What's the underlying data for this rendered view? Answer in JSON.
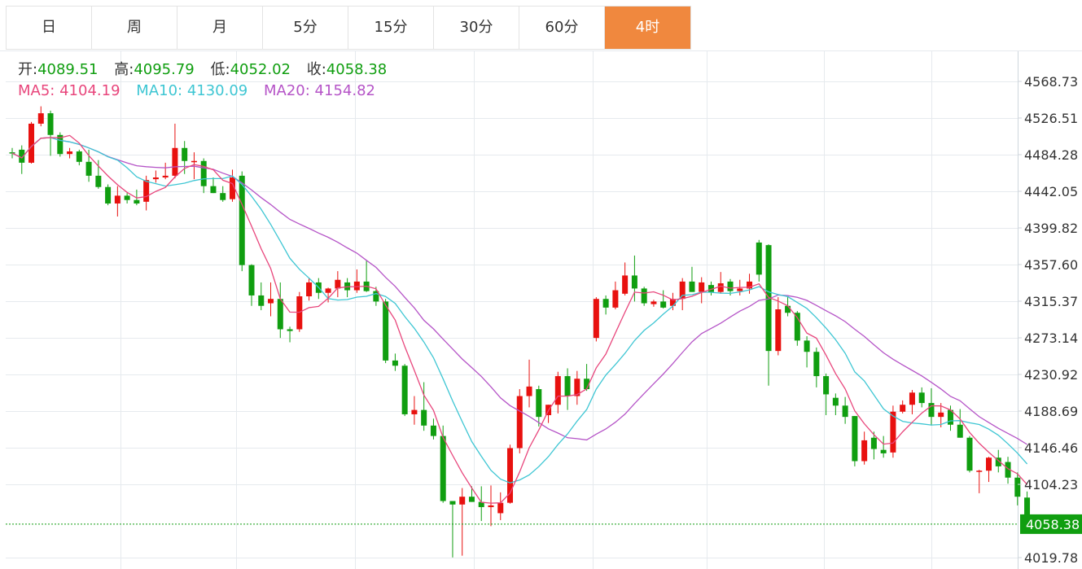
{
  "tabs": [
    {
      "label": "日",
      "active": false
    },
    {
      "label": "周",
      "active": false
    },
    {
      "label": "月",
      "active": false
    },
    {
      "label": "5分",
      "active": false
    },
    {
      "label": "15分",
      "active": false
    },
    {
      "label": "30分",
      "active": false
    },
    {
      "label": "60分",
      "active": false
    },
    {
      "label": "4时",
      "active": true
    }
  ],
  "ohlc_info": {
    "open_label": "开:",
    "open_value": "4089.51",
    "high_label": "高:",
    "high_value": "4095.79",
    "low_label": "低:",
    "low_value": "4052.02",
    "close_label": "收:",
    "close_value": "4058.38"
  },
  "ma_info": {
    "ma5_label": "MA5:",
    "ma5_value": "4104.19",
    "ma10_label": "MA10:",
    "ma10_value": "4130.09",
    "ma20_label": "MA20:",
    "ma20_value": "4154.82"
  },
  "colors": {
    "up": "#e8110f",
    "down": "#109e10",
    "ma5": "#e8467c",
    "ma10": "#3ec6d3",
    "ma20": "#b554c7",
    "grid": "#e6eaee",
    "accent": "#f0883e",
    "value_green": "#109e10"
  },
  "chart_data": {
    "type": "candlestick",
    "y_ticks": [
      "4568.73",
      "4526.51",
      "4484.28",
      "4442.05",
      "4399.82",
      "4357.60",
      "4315.37",
      "4273.14",
      "4230.92",
      "4188.69",
      "4146.46",
      "4104.23",
      "4019.78"
    ],
    "ylim": [
      4010,
      4572
    ],
    "last_price": "4058.38",
    "grid": true,
    "candles": [
      [
        4487,
        4492,
        4480,
        4486
      ],
      [
        4490,
        4495,
        4462,
        4475
      ],
      [
        4475,
        4522,
        4474,
        4520
      ],
      [
        4520,
        4540,
        4517,
        4532
      ],
      [
        4532,
        4535,
        4483,
        4507
      ],
      [
        4507,
        4510,
        4482,
        4485
      ],
      [
        4485,
        4492,
        4480,
        4488
      ],
      [
        4488,
        4490,
        4472,
        4476
      ],
      [
        4476,
        4490,
        4453,
        4460
      ],
      [
        4460,
        4478,
        4445,
        4447
      ],
      [
        4447,
        4450,
        4426,
        4428
      ],
      [
        4428,
        4448,
        4413,
        4437
      ],
      [
        4437,
        4440,
        4428,
        4432
      ],
      [
        4432,
        4444,
        4426,
        4428
      ],
      [
        4430,
        4460,
        4420,
        4455
      ],
      [
        4456,
        4466,
        4452,
        4458
      ],
      [
        4458,
        4475,
        4456,
        4460
      ],
      [
        4460,
        4520,
        4457,
        4492
      ],
      [
        4492,
        4500,
        4462,
        4477
      ],
      [
        4477,
        4487,
        4456,
        4477
      ],
      [
        4477,
        4480,
        4440,
        4448
      ],
      [
        4448,
        4458,
        4440,
        4440
      ],
      [
        4440,
        4448,
        4430,
        4432
      ],
      [
        4433,
        4467,
        4430,
        4458
      ],
      [
        4460,
        4465,
        4350,
        4357
      ],
      [
        4357,
        4358,
        4310,
        4322
      ],
      [
        4322,
        4337,
        4305,
        4310
      ],
      [
        4313,
        4337,
        4298,
        4318
      ],
      [
        4318,
        4337,
        4273,
        4283
      ],
      [
        4283,
        4286,
        4268,
        4281
      ],
      [
        4283,
        4326,
        4280,
        4321
      ],
      [
        4321,
        4342,
        4316,
        4337
      ],
      [
        4337,
        4342,
        4318,
        4325
      ],
      [
        4325,
        4331,
        4314,
        4330
      ],
      [
        4330,
        4350,
        4320,
        4340
      ],
      [
        4337,
        4342,
        4320,
        4328
      ],
      [
        4328,
        4352,
        4325,
        4338
      ],
      [
        4338,
        4362,
        4326,
        4327
      ],
      [
        4327,
        4332,
        4310,
        4315
      ],
      [
        4315,
        4318,
        4244,
        4247
      ],
      [
        4247,
        4255,
        4235,
        4241
      ],
      [
        4241,
        4243,
        4183,
        4185
      ],
      [
        4185,
        4206,
        4173,
        4190
      ],
      [
        4190,
        4222,
        4166,
        4172
      ],
      [
        4172,
        4180,
        4156,
        4160
      ],
      [
        4160,
        4172,
        4083,
        4085
      ],
      [
        4085,
        4085,
        4020,
        4081
      ],
      [
        4081,
        4100,
        4022,
        4090
      ],
      [
        4090,
        4102,
        4084,
        4084
      ],
      [
        4084,
        4102,
        4062,
        4078
      ],
      [
        4078,
        4103,
        4056,
        4080
      ],
      [
        4071,
        4095,
        4063,
        4083
      ],
      [
        4083,
        4150,
        4082,
        4146
      ],
      [
        4146,
        4214,
        4140,
        4206
      ],
      [
        4206,
        4248,
        4193,
        4217
      ],
      [
        4214,
        4218,
        4171,
        4182
      ],
      [
        4184,
        4196,
        4175,
        4196
      ],
      [
        4196,
        4234,
        4186,
        4229
      ],
      [
        4229,
        4238,
        4190,
        4206
      ],
      [
        4206,
        4235,
        4196,
        4226
      ],
      [
        4226,
        4243,
        4212,
        4214
      ],
      [
        4273,
        4320,
        4269,
        4318
      ],
      [
        4318,
        4322,
        4300,
        4308
      ],
      [
        4308,
        4338,
        4306,
        4328
      ],
      [
        4324,
        4360,
        4322,
        4345
      ],
      [
        4345,
        4368,
        4315,
        4330
      ],
      [
        4330,
        4332,
        4310,
        4313
      ],
      [
        4312,
        4317,
        4309,
        4315
      ],
      [
        4315,
        4328,
        4307,
        4308
      ],
      [
        4310,
        4325,
        4305,
        4318
      ],
      [
        4318,
        4342,
        4305,
        4338
      ],
      [
        4338,
        4355,
        4326,
        4326
      ],
      [
        4326,
        4343,
        4313,
        4337
      ],
      [
        4334,
        4338,
        4322,
        4326
      ],
      [
        4326,
        4349,
        4324,
        4336
      ],
      [
        4338,
        4341,
        4322,
        4327
      ],
      [
        4327,
        4340,
        4322,
        4330
      ],
      [
        4330,
        4347,
        4324,
        4338
      ],
      [
        4383,
        4386,
        4338,
        4346
      ],
      [
        4380,
        4381,
        4218,
        4258
      ],
      [
        4258,
        4320,
        4253,
        4306
      ],
      [
        4310,
        4320,
        4298,
        4302
      ],
      [
        4302,
        4304,
        4264,
        4270
      ],
      [
        4270,
        4275,
        4239,
        4257
      ],
      [
        4257,
        4262,
        4216,
        4229
      ],
      [
        4229,
        4232,
        4184,
        4208
      ],
      [
        4204,
        4209,
        4184,
        4195
      ],
      [
        4195,
        4205,
        4174,
        4182
      ],
      [
        4183,
        4183,
        4125,
        4131
      ],
      [
        4131,
        4165,
        4127,
        4155
      ],
      [
        4158,
        4165,
        4133,
        4145
      ],
      [
        4144,
        4160,
        4135,
        4140
      ],
      [
        4141,
        4195,
        4135,
        4188
      ],
      [
        4188,
        4201,
        4186,
        4196
      ],
      [
        4196,
        4213,
        4185,
        4210
      ],
      [
        4210,
        4216,
        4193,
        4198
      ],
      [
        4198,
        4215,
        4172,
        4182
      ],
      [
        4182,
        4198,
        4170,
        4187
      ],
      [
        4190,
        4195,
        4166,
        4173
      ],
      [
        4173,
        4191,
        4158,
        4158
      ],
      [
        4158,
        4160,
        4118,
        4120
      ],
      [
        4120,
        4121,
        4094,
        4120
      ],
      [
        4120,
        4136,
        4107,
        4135
      ],
      [
        4135,
        4144,
        4118,
        4125
      ],
      [
        4130,
        4136,
        4105,
        4112
      ],
      [
        4112,
        4118,
        4080,
        4090
      ],
      [
        4089,
        4096,
        4052,
        4058
      ]
    ]
  }
}
